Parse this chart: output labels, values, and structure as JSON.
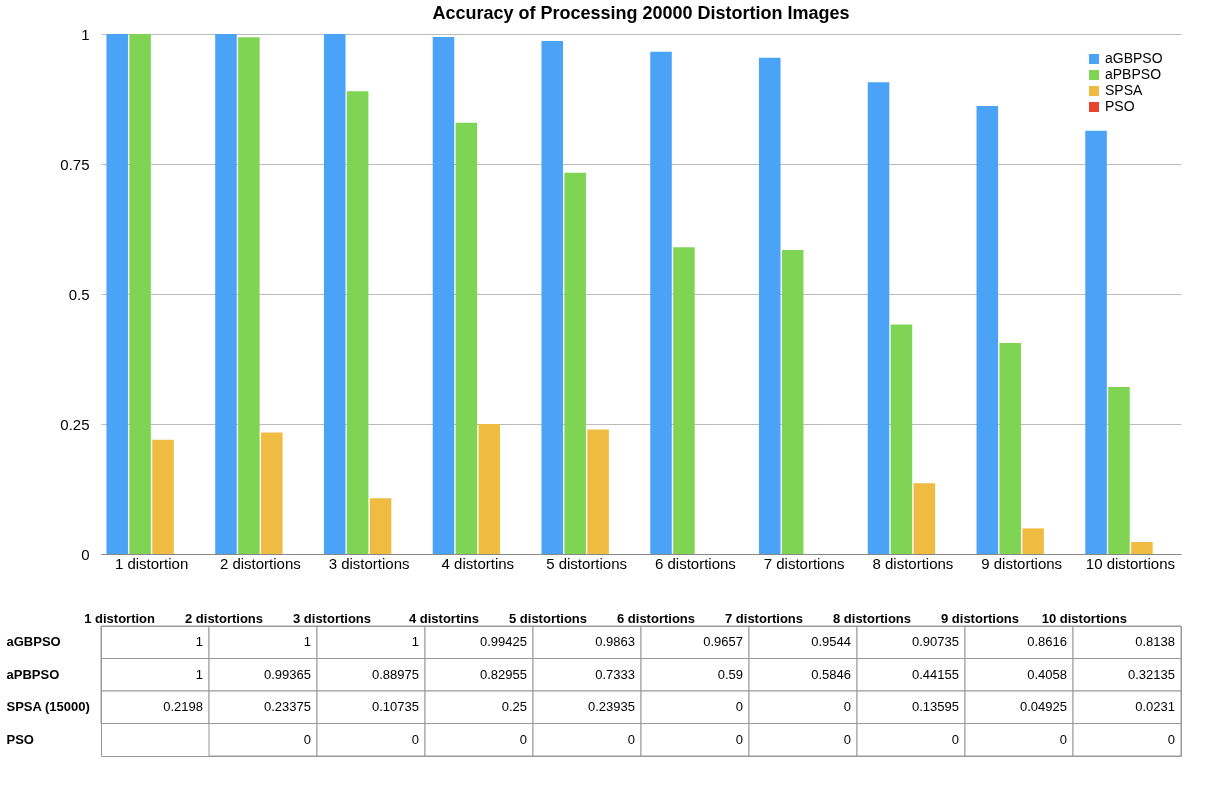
{
  "chart_data": {
    "type": "bar",
    "title": "Accuracy of Processing 20000 Distortion Images",
    "categories": [
      "1 distortion",
      "2 distortions",
      "3 distortions",
      "4 distortins",
      "5 distortions",
      "6 distortions",
      "7 distortions",
      "8 distortions",
      "9 distortions",
      "10 distortions"
    ],
    "series": [
      {
        "name": "aGBPSO",
        "color": "#4aa3f7",
        "values": [
          1,
          1,
          1,
          0.99425,
          0.9863,
          0.9657,
          0.9544,
          0.90735,
          0.8616,
          0.8138
        ]
      },
      {
        "name": "aPBPSO",
        "color": "#80d454",
        "values": [
          1,
          0.99365,
          0.88975,
          0.82955,
          0.7333,
          0.59,
          0.5846,
          0.44155,
          0.4058,
          0.32135
        ]
      },
      {
        "name": "SPSA",
        "color": "#f0bb41",
        "values": [
          0.2198,
          0.23375,
          0.10735,
          0.25,
          0.23935,
          0,
          0,
          0.13595,
          0.04925,
          0.0231
        ]
      },
      {
        "name": "PSO",
        "color": "#e8432d",
        "values": [
          null,
          0,
          0,
          0,
          0,
          0,
          0,
          0,
          0,
          0
        ]
      }
    ],
    "annotations": [
      "SPSA (15000)"
    ],
    "ylim": [
      0,
      1
    ],
    "yticks": [
      0,
      0.25,
      0.5,
      0.75,
      1
    ],
    "grid": "y",
    "legend": "top right",
    "data_labels": true
  }
}
